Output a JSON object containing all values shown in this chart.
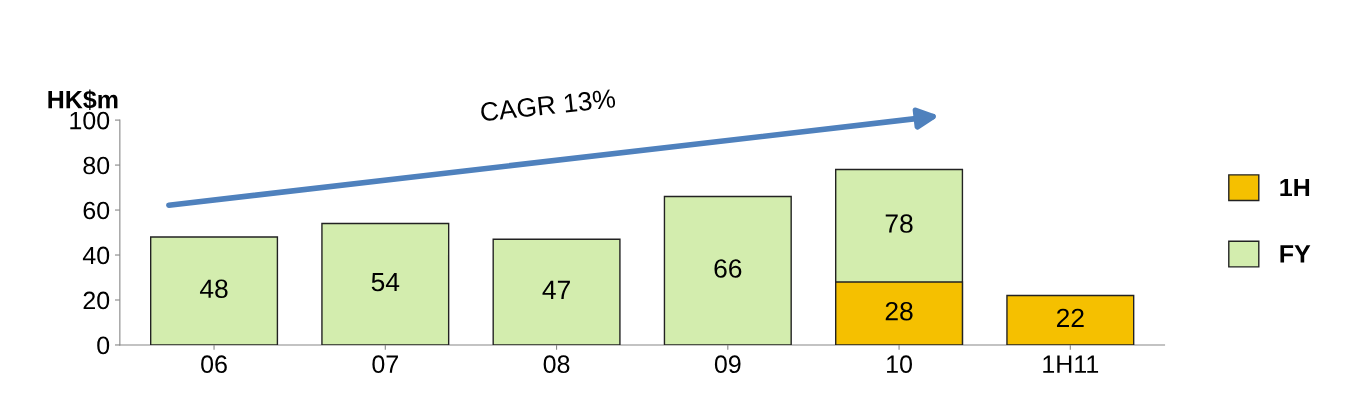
{
  "chart_data": {
    "type": "bar",
    "ylabel": "HK$m",
    "categories": [
      "06",
      "07",
      "08",
      "09",
      "10",
      "1H11"
    ],
    "series": [
      {
        "name": "1H",
        "color": "#f5c000",
        "values": [
          null,
          null,
          null,
          null,
          28,
          22
        ],
        "value_labels": [
          null,
          null,
          null,
          null,
          "28",
          "22"
        ]
      },
      {
        "name": "FY",
        "color": "#d3edae",
        "values": [
          48,
          54,
          47,
          66,
          78,
          null
        ],
        "value_labels": [
          "48",
          "54",
          "47",
          "66",
          "78",
          null
        ]
      }
    ],
    "ylim": [
      0,
      100
    ],
    "yticks": [
      0,
      20,
      40,
      60,
      80,
      100
    ],
    "annotations": [
      "CAGR 13%"
    ],
    "legend": "right",
    "grid": false
  }
}
